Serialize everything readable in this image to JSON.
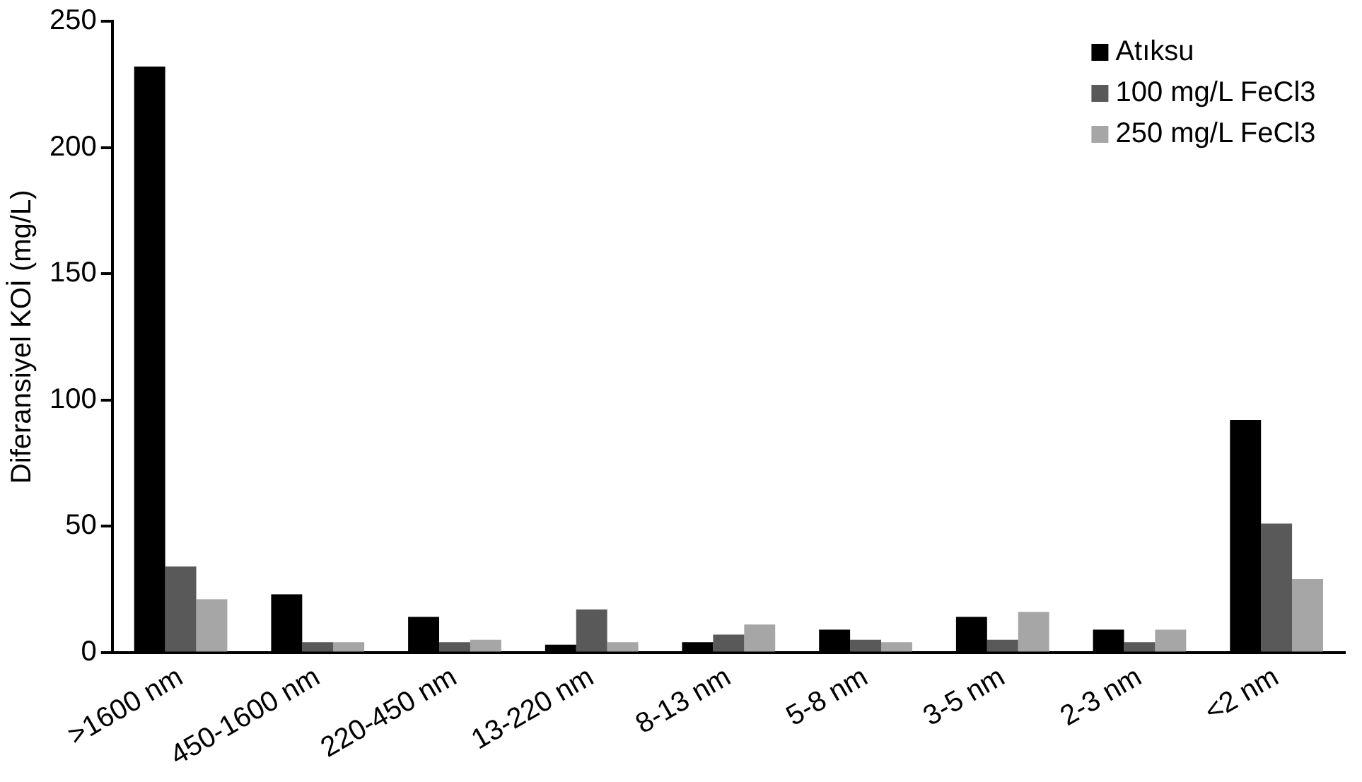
{
  "chart_data": {
    "type": "bar",
    "ylabel": "Diferansiyel KOİ (mg/L)",
    "categories": [
      ">1600 nm",
      "450-1600 nm",
      "220-450 nm",
      "13-220 nm",
      "8-13 nm",
      "5-8 nm",
      "3-5 nm",
      "2-3 nm",
      "<2 nm"
    ],
    "series": [
      {
        "name": "Atıksu",
        "color": "#000000",
        "values": [
          232,
          23,
          14,
          3,
          4,
          9,
          14,
          9,
          92
        ]
      },
      {
        "name": "100 mg/L FeCl3",
        "color": "#595959",
        "values": [
          34,
          4,
          4,
          17,
          7,
          5,
          5,
          4,
          51
        ]
      },
      {
        "name": "250 mg/L FeCl3",
        "color": "#a6a6a6",
        "values": [
          21,
          4,
          5,
          4,
          11,
          4,
          16,
          9,
          29
        ]
      }
    ],
    "ylim": [
      0,
      250
    ],
    "yticks": [
      0,
      50,
      100,
      150,
      200,
      250
    ],
    "grid": false,
    "legend": "top right"
  }
}
